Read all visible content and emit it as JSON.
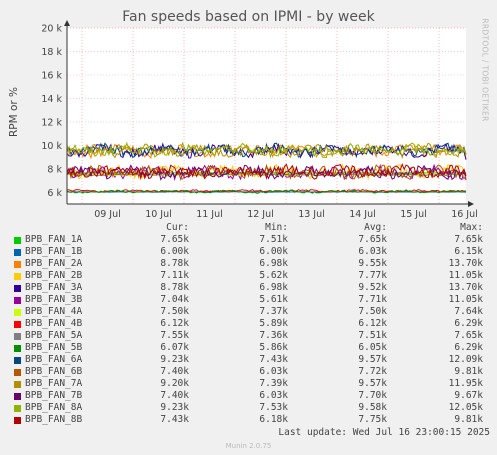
{
  "chart_data": {
    "type": "line",
    "title": "Fan speeds based on IPMI - by week",
    "ylabel": "RPM or %",
    "ylim": [
      5000,
      20000
    ],
    "yticks": [
      {
        "value": 6000,
        "label": "6 k"
      },
      {
        "value": 8000,
        "label": "8 k"
      },
      {
        "value": 10000,
        "label": "10 k"
      },
      {
        "value": 12000,
        "label": "12 k"
      },
      {
        "value": 14000,
        "label": "14 k"
      },
      {
        "value": 16000,
        "label": "16 k"
      },
      {
        "value": 18000,
        "label": "18 k"
      },
      {
        "value": 20000,
        "label": "20 k"
      }
    ],
    "xticks": [
      "09 Jul",
      "10 Jul",
      "11 Jul",
      "12 Jul",
      "13 Jul",
      "14 Jul",
      "15 Jul",
      "16 Jul"
    ],
    "grid": true,
    "columns": {
      "cur": "Cur:",
      "min": "Min:",
      "avg": "Avg:",
      "max": "Max:"
    },
    "series": [
      {
        "name": "BPB_FAN_1A",
        "color": "#00cc00",
        "cur": "7.65k",
        "min": "7.51k",
        "avg": "7.65k",
        "max": "7.65k"
      },
      {
        "name": "BPB_FAN_1B",
        "color": "#0066b3",
        "cur": "6.00k",
        "min": "6.00k",
        "avg": "6.03k",
        "max": "6.15k"
      },
      {
        "name": "BPB_FAN_2A",
        "color": "#ff8000",
        "cur": "8.78k",
        "min": "6.98k",
        "avg": "9.55k",
        "max": "13.70k"
      },
      {
        "name": "BPB_FAN_2B",
        "color": "#ffcc00",
        "cur": "7.11k",
        "min": "5.62k",
        "avg": "7.77k",
        "max": "11.05k"
      },
      {
        "name": "BPB_FAN_3A",
        "color": "#330099",
        "cur": "8.78k",
        "min": "6.98k",
        "avg": "9.52k",
        "max": "13.70k"
      },
      {
        "name": "BPB_FAN_3B",
        "color": "#990099",
        "cur": "7.04k",
        "min": "5.61k",
        "avg": "7.71k",
        "max": "11.05k"
      },
      {
        "name": "BPB_FAN_4A",
        "color": "#ccff00",
        "cur": "7.50k",
        "min": "7.37k",
        "avg": "7.50k",
        "max": "7.64k"
      },
      {
        "name": "BPB_FAN_4B",
        "color": "#ff0000",
        "cur": "6.12k",
        "min": "5.89k",
        "avg": "6.12k",
        "max": "6.29k"
      },
      {
        "name": "BPB_FAN_5A",
        "color": "#808080",
        "cur": "7.55k",
        "min": "7.36k",
        "avg": "7.51k",
        "max": "7.65k"
      },
      {
        "name": "BPB_FAN_5B",
        "color": "#008f00",
        "cur": "6.07k",
        "min": "5.86k",
        "avg": "6.05k",
        "max": "6.29k"
      },
      {
        "name": "BPB_FAN_6A",
        "color": "#00487d",
        "cur": "9.23k",
        "min": "7.43k",
        "avg": "9.57k",
        "max": "12.09k"
      },
      {
        "name": "BPB_FAN_6B",
        "color": "#b35a00",
        "cur": "7.40k",
        "min": "6.03k",
        "avg": "7.72k",
        "max": "9.81k"
      },
      {
        "name": "BPB_FAN_7A",
        "color": "#b38f00",
        "cur": "9.20k",
        "min": "7.39k",
        "avg": "9.57k",
        "max": "11.95k"
      },
      {
        "name": "BPB_FAN_7B",
        "color": "#6b006b",
        "cur": "7.40k",
        "min": "6.03k",
        "avg": "7.70k",
        "max": "9.67k"
      },
      {
        "name": "BPB_FAN_8A",
        "color": "#8fb300",
        "cur": "9.23k",
        "min": "7.53k",
        "avg": "9.58k",
        "max": "12.05k"
      },
      {
        "name": "BPB_FAN_8B",
        "color": "#b30000",
        "cur": "7.43k",
        "min": "6.18k",
        "avg": "7.75k",
        "max": "9.81k"
      }
    ]
  },
  "side_text": "RRDTOOL / TOBI OETIKER",
  "last_update": "Last update: Wed Jul 16 23:00:15 2025",
  "footer": "Munin 2.0.75"
}
